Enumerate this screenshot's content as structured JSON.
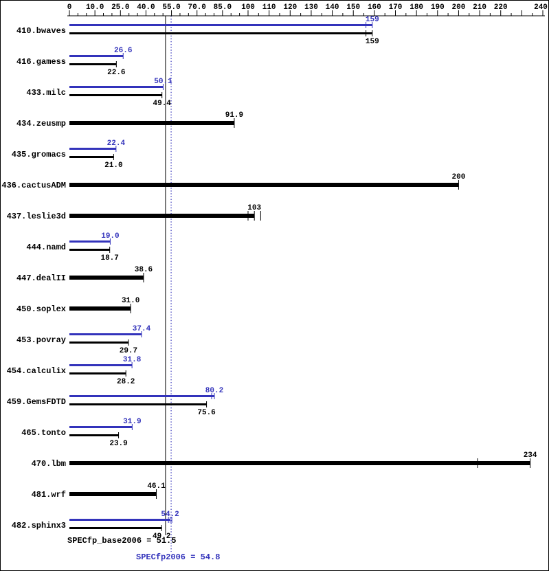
{
  "chart_data": {
    "type": "bar",
    "orientation": "horizontal",
    "colors": {
      "peak": "#3333bb",
      "base": "#000000"
    },
    "axis_ticks": [
      {
        "value": 0,
        "label": "0"
      },
      {
        "value": 10,
        "label": "10.0"
      },
      {
        "value": 25,
        "label": "25.0"
      },
      {
        "value": 40,
        "label": "40.0"
      },
      {
        "value": 55,
        "label": "55.0"
      },
      {
        "value": 70,
        "label": "70.0"
      },
      {
        "value": 85,
        "label": "85.0"
      },
      {
        "value": 100,
        "label": "100"
      },
      {
        "value": 110,
        "label": "110"
      },
      {
        "value": 120,
        "label": "120"
      },
      {
        "value": 130,
        "label": "130"
      },
      {
        "value": 140,
        "label": "140"
      },
      {
        "value": 150,
        "label": "150"
      },
      {
        "value": 160,
        "label": "160"
      },
      {
        "value": 170,
        "label": "170"
      },
      {
        "value": 180,
        "label": "180"
      },
      {
        "value": 190,
        "label": "190"
      },
      {
        "value": 200,
        "label": "200"
      },
      {
        "value": 210,
        "label": "210"
      },
      {
        "value": 220,
        "label": "220"
      },
      {
        "value": 230,
        "label": ""
      },
      {
        "value": 240,
        "label": "240"
      }
    ],
    "benchmarks": [
      {
        "name": "410.bwaves",
        "peak": {
          "value": 159,
          "label": "159",
          "marks": [
            156
          ]
        },
        "base": {
          "value": 159,
          "label": "159",
          "marks": [
            156
          ]
        }
      },
      {
        "name": "416.gamess",
        "peak": {
          "value": 26.6,
          "label": "26.6"
        },
        "base": {
          "value": 22.6,
          "label": "22.6"
        }
      },
      {
        "name": "433.milc",
        "peak": {
          "value": 50.1,
          "label": "50.1"
        },
        "base": {
          "value": 49.4,
          "label": "49.4"
        }
      },
      {
        "name": "434.zeusmp",
        "base": {
          "value": 91.9,
          "label": "91.9"
        }
      },
      {
        "name": "435.gromacs",
        "peak": {
          "value": 22.4,
          "label": "22.4"
        },
        "base": {
          "value": 21.0,
          "label": "21.0"
        }
      },
      {
        "name": "436.cactusADM",
        "base": {
          "value": 200,
          "label": "200"
        }
      },
      {
        "name": "437.leslie3d",
        "base": {
          "value": 103,
          "label": "103",
          "marks": [
            100,
            106
          ]
        }
      },
      {
        "name": "444.namd",
        "peak": {
          "value": 19.0,
          "label": "19.0"
        },
        "base": {
          "value": 18.7,
          "label": "18.7"
        }
      },
      {
        "name": "447.dealII",
        "base": {
          "value": 38.6,
          "label": "38.6"
        }
      },
      {
        "name": "450.soplex",
        "base": {
          "value": 31.0,
          "label": "31.0"
        }
      },
      {
        "name": "453.povray",
        "peak": {
          "value": 37.4,
          "label": "37.4"
        },
        "base": {
          "value": 29.7,
          "label": "29.7"
        }
      },
      {
        "name": "454.calculix",
        "peak": {
          "value": 31.8,
          "label": "31.8"
        },
        "base": {
          "value": 28.2,
          "label": "28.2"
        }
      },
      {
        "name": "459.GemsFDTD",
        "peak": {
          "value": 80.2,
          "label": "80.2",
          "marks": [
            78.6
          ]
        },
        "base": {
          "value": 75.6,
          "label": "75.6"
        }
      },
      {
        "name": "465.tonto",
        "peak": {
          "value": 31.9,
          "label": "31.9"
        },
        "base": {
          "value": 23.9,
          "label": "23.9"
        }
      },
      {
        "name": "470.lbm",
        "base": {
          "value": 234,
          "label": "234",
          "marks": [
            209
          ]
        }
      },
      {
        "name": "481.wrf",
        "base": {
          "value": 46.1,
          "label": "46.1"
        }
      },
      {
        "name": "482.sphinx3",
        "peak": {
          "value": 54.2,
          "label": "54.2",
          "marks": [
            53.2,
            55.2
          ]
        },
        "base": {
          "value": 49.2,
          "label": "49.2"
        }
      }
    ],
    "summary": {
      "base_text": "SPECfp_base2006 = 51.5",
      "base_value": 51.5,
      "peak_text": "SPECfp2006 = 54.8",
      "peak_value": 54.8
    }
  }
}
